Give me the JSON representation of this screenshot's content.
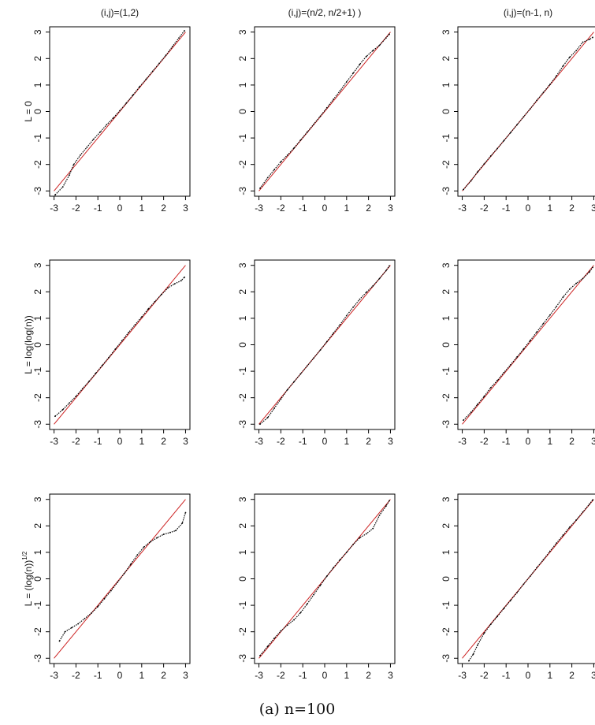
{
  "figure": {
    "caption": "(a) n=100",
    "column_titles": [
      "(i,j)=(1,2)",
      "(i,j)=(n/2, n/2+1) )",
      "(i,j)=(n-1, n)"
    ],
    "row_labels": [
      {
        "main": "L = 0",
        "sup": ""
      },
      {
        "main": "L = log(log(n))",
        "sup": ""
      },
      {
        "main": "L = (log(n))",
        "sup": "1/2"
      }
    ],
    "reference_line_color": "#cc2222",
    "point_color": "#000000"
  },
  "chart_data": [
    {
      "type": "scatter",
      "row": 1,
      "col": 1,
      "title": "(i,j)=(1,2)",
      "ylabel": "L = 0",
      "xticks": [
        -3,
        -2,
        -1,
        0,
        1,
        2,
        3
      ],
      "yticks": [
        -3,
        -2,
        -1,
        0,
        1,
        2,
        3
      ],
      "xlim": [
        -3.2,
        3.2
      ],
      "ylim": [
        -3.2,
        3.2
      ],
      "reference_line": [
        [
          -3,
          -3
        ],
        [
          3,
          3
        ]
      ],
      "series": [
        {
          "x": [
            -2.95,
            -2.6,
            -2.3,
            -2.1,
            -1.8,
            -1.5,
            -1.2,
            -0.9,
            -0.6,
            -0.3,
            0,
            0.3,
            0.6,
            0.9,
            1.2,
            1.5,
            1.8,
            2.1,
            2.4,
            2.7,
            2.95
          ],
          "y": [
            -3.15,
            -2.85,
            -2.4,
            -2.0,
            -1.65,
            -1.35,
            -1.05,
            -0.78,
            -0.5,
            -0.25,
            0.03,
            0.32,
            0.62,
            0.93,
            1.22,
            1.52,
            1.82,
            2.12,
            2.45,
            2.78,
            3.05
          ]
        }
      ]
    },
    {
      "type": "scatter",
      "row": 1,
      "col": 2,
      "title": "(i,j)=(n/2, n/2+1) )",
      "ylabel": "L = 0",
      "xticks": [
        -3,
        -2,
        -1,
        0,
        1,
        2,
        3
      ],
      "yticks": [
        -3,
        -2,
        -1,
        0,
        1,
        2,
        3
      ],
      "xlim": [
        -3.2,
        3.2
      ],
      "ylim": [
        -3.2,
        3.2
      ],
      "reference_line": [
        [
          -3,
          -3
        ],
        [
          3,
          3
        ]
      ],
      "series": [
        {
          "x": [
            -2.95,
            -2.6,
            -2.3,
            -2.0,
            -1.7,
            -1.4,
            -1.1,
            -0.8,
            -0.5,
            -0.2,
            0.1,
            0.4,
            0.7,
            1.0,
            1.3,
            1.6,
            1.9,
            2.2,
            2.5,
            2.8,
            2.95
          ],
          "y": [
            -2.9,
            -2.5,
            -2.2,
            -1.9,
            -1.65,
            -1.38,
            -1.08,
            -0.78,
            -0.48,
            -0.18,
            0.14,
            0.46,
            0.78,
            1.12,
            1.45,
            1.78,
            2.08,
            2.3,
            2.5,
            2.78,
            2.92
          ]
        }
      ]
    },
    {
      "type": "scatter",
      "row": 1,
      "col": 3,
      "title": "(i,j)=(n-1, n)",
      "ylabel": "L = 0",
      "xticks": [
        -3,
        -2,
        -1,
        0,
        1,
        2,
        3
      ],
      "yticks": [
        -3,
        -2,
        -1,
        0,
        1,
        2,
        3
      ],
      "xlim": [
        -3.2,
        3.2
      ],
      "ylim": [
        -3.2,
        3.2
      ],
      "reference_line": [
        [
          -3,
          -3
        ],
        [
          3,
          3
        ]
      ],
      "series": [
        {
          "x": [
            -2.95,
            -2.6,
            -2.3,
            -2.0,
            -1.7,
            -1.4,
            -1.1,
            -0.8,
            -0.5,
            -0.2,
            0.1,
            0.4,
            0.7,
            1.0,
            1.3,
            1.6,
            1.9,
            2.2,
            2.5,
            2.8,
            2.95
          ],
          "y": [
            -2.95,
            -2.62,
            -2.28,
            -1.98,
            -1.68,
            -1.4,
            -1.1,
            -0.8,
            -0.5,
            -0.2,
            0.1,
            0.42,
            0.72,
            1.02,
            1.35,
            1.72,
            2.05,
            2.3,
            2.62,
            2.72,
            2.8
          ]
        }
      ]
    },
    {
      "type": "scatter",
      "row": 2,
      "col": 1,
      "title": "(i,j)=(1,2)",
      "ylabel": "L = log(log(n))",
      "xticks": [
        -3,
        -2,
        -1,
        0,
        1,
        2,
        3
      ],
      "yticks": [
        -3,
        -2,
        -1,
        0,
        1,
        2,
        3
      ],
      "xlim": [
        -3.2,
        3.2
      ],
      "ylim": [
        -3.2,
        3.2
      ],
      "reference_line": [
        [
          -3,
          -3
        ],
        [
          3,
          3
        ]
      ],
      "series": [
        {
          "x": [
            -2.95,
            -2.6,
            -2.3,
            -2.0,
            -1.7,
            -1.4,
            -1.1,
            -0.8,
            -0.5,
            -0.2,
            0.1,
            0.4,
            0.7,
            1.0,
            1.3,
            1.6,
            1.9,
            2.2,
            2.5,
            2.8,
            2.95
          ],
          "y": [
            -2.7,
            -2.45,
            -2.2,
            -1.95,
            -1.66,
            -1.38,
            -1.08,
            -0.78,
            -0.48,
            -0.16,
            0.15,
            0.46,
            0.76,
            1.05,
            1.35,
            1.63,
            1.9,
            2.15,
            2.3,
            2.42,
            2.55
          ]
        }
      ]
    },
    {
      "type": "scatter",
      "row": 2,
      "col": 2,
      "title": "(i,j)=(n/2, n/2+1) )",
      "ylabel": "L = log(log(n))",
      "xticks": [
        -3,
        -2,
        -1,
        0,
        1,
        2,
        3
      ],
      "yticks": [
        -3,
        -2,
        -1,
        0,
        1,
        2,
        3
      ],
      "xlim": [
        -3.2,
        3.2
      ],
      "ylim": [
        -3.2,
        3.2
      ],
      "reference_line": [
        [
          -3,
          -3
        ],
        [
          3,
          3
        ]
      ],
      "series": [
        {
          "x": [
            -2.95,
            -2.6,
            -2.3,
            -2.0,
            -1.7,
            -1.4,
            -1.1,
            -0.8,
            -0.5,
            -0.2,
            0.1,
            0.4,
            0.7,
            1.0,
            1.3,
            1.6,
            1.9,
            2.2,
            2.5,
            2.8,
            2.95
          ],
          "y": [
            -3.0,
            -2.75,
            -2.4,
            -2.05,
            -1.7,
            -1.4,
            -1.1,
            -0.8,
            -0.5,
            -0.2,
            0.12,
            0.44,
            0.76,
            1.1,
            1.42,
            1.72,
            1.98,
            2.22,
            2.5,
            2.8,
            2.98
          ]
        }
      ]
    },
    {
      "type": "scatter",
      "row": 2,
      "col": 3,
      "title": "(i,j)=(n-1, n)",
      "ylabel": "L = log(log(n))",
      "xticks": [
        -3,
        -2,
        -1,
        0,
        1,
        2,
        3
      ],
      "yticks": [
        -3,
        -2,
        -1,
        0,
        1,
        2,
        3
      ],
      "xlim": [
        -3.2,
        3.2
      ],
      "ylim": [
        -3.2,
        3.2
      ],
      "reference_line": [
        [
          -3,
          -3
        ],
        [
          3,
          3
        ]
      ],
      "series": [
        {
          "x": [
            -2.95,
            -2.6,
            -2.3,
            -2.0,
            -1.7,
            -1.4,
            -1.1,
            -0.8,
            -0.5,
            -0.2,
            0.1,
            0.4,
            0.7,
            1.0,
            1.3,
            1.6,
            1.9,
            2.2,
            2.5,
            2.8,
            2.95
          ],
          "y": [
            -2.85,
            -2.55,
            -2.25,
            -1.95,
            -1.62,
            -1.35,
            -1.05,
            -0.76,
            -0.46,
            -0.16,
            0.16,
            0.48,
            0.8,
            1.12,
            1.45,
            1.8,
            2.1,
            2.32,
            2.5,
            2.75,
            2.92
          ]
        }
      ]
    },
    {
      "type": "scatter",
      "row": 3,
      "col": 1,
      "title": "(i,j)=(1,2)",
      "ylabel": "L = (log(n))^1/2",
      "xticks": [
        -3,
        -2,
        -1,
        0,
        1,
        2,
        3
      ],
      "yticks": [
        -3,
        -2,
        -1,
        0,
        1,
        2,
        3
      ],
      "xlim": [
        -3.2,
        3.2
      ],
      "ylim": [
        -3.2,
        3.2
      ],
      "reference_line": [
        [
          -3,
          -3
        ],
        [
          3,
          3
        ]
      ],
      "series": [
        {
          "x": [
            -2.75,
            -2.5,
            -2.2,
            -1.9,
            -1.6,
            -1.3,
            -1.0,
            -0.7,
            -0.4,
            -0.1,
            0.2,
            0.5,
            0.8,
            1.1,
            1.4,
            1.7,
            2.0,
            2.3,
            2.55,
            2.85,
            3.0
          ],
          "y": [
            -2.35,
            -2.0,
            -1.85,
            -1.7,
            -1.5,
            -1.3,
            -1.05,
            -0.75,
            -0.45,
            -0.13,
            0.2,
            0.55,
            0.9,
            1.2,
            1.4,
            1.55,
            1.68,
            1.75,
            1.82,
            2.1,
            2.5
          ]
        }
      ]
    },
    {
      "type": "scatter",
      "row": 3,
      "col": 2,
      "title": "(i,j)=(n/2, n/2+1) )",
      "ylabel": "L = (log(n))^1/2",
      "xticks": [
        -3,
        -2,
        -1,
        0,
        1,
        2,
        3
      ],
      "yticks": [
        -3,
        -2,
        -1,
        0,
        1,
        2,
        3
      ],
      "xlim": [
        -3.2,
        3.2
      ],
      "ylim": [
        -3.2,
        3.2
      ],
      "reference_line": [
        [
          -3,
          -3
        ],
        [
          3,
          3
        ]
      ],
      "series": [
        {
          "x": [
            -2.95,
            -2.6,
            -2.3,
            -2.0,
            -1.7,
            -1.4,
            -1.1,
            -0.8,
            -0.5,
            -0.2,
            0.1,
            0.4,
            0.7,
            1.0,
            1.3,
            1.6,
            1.9,
            2.2,
            2.5,
            2.8,
            2.95
          ],
          "y": [
            -2.9,
            -2.55,
            -2.25,
            -1.97,
            -1.75,
            -1.55,
            -1.28,
            -0.95,
            -0.6,
            -0.25,
            0.1,
            0.42,
            0.72,
            1.0,
            1.3,
            1.55,
            1.7,
            1.9,
            2.4,
            2.75,
            2.95
          ]
        }
      ]
    },
    {
      "type": "scatter",
      "row": 3,
      "col": 3,
      "title": "(i,j)=(n-1, n)",
      "ylabel": "L = (log(n))^1/2",
      "xticks": [
        -3,
        -2,
        -1,
        0,
        1,
        2,
        3
      ],
      "yticks": [
        -3,
        -2,
        -1,
        0,
        1,
        2,
        3
      ],
      "xlim": [
        -3.2,
        3.2
      ],
      "ylim": [
        -3.2,
        3.2
      ],
      "reference_line": [
        [
          -3,
          -3
        ],
        [
          3,
          3
        ]
      ],
      "series": [
        {
          "x": [
            -2.7,
            -2.5,
            -2.3,
            -2.0,
            -1.7,
            -1.4,
            -1.1,
            -0.8,
            -0.5,
            -0.2,
            0.1,
            0.4,
            0.7,
            1.0,
            1.3,
            1.6,
            1.9,
            2.2,
            2.5,
            2.8,
            2.95
          ],
          "y": [
            -3.1,
            -2.85,
            -2.5,
            -2.05,
            -1.72,
            -1.42,
            -1.12,
            -0.82,
            -0.52,
            -0.2,
            0.1,
            0.42,
            0.72,
            1.04,
            1.35,
            1.65,
            1.95,
            2.22,
            2.52,
            2.82,
            2.98
          ]
        }
      ]
    }
  ]
}
